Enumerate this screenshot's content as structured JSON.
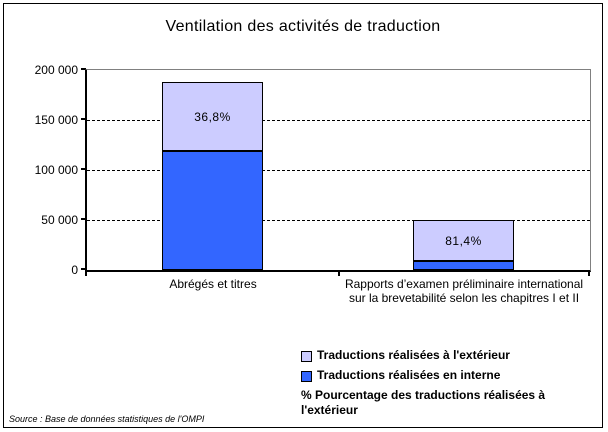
{
  "chart_data": {
    "type": "bar",
    "stacked": true,
    "title": "Ventilation des activités de traduction",
    "categories": [
      "Abrégés et titres",
      "Rapports d’examen préliminaire international sur la brevetabilité selon les chapitres I et II"
    ],
    "series": [
      {
        "name": "Traductions réalisées en interne",
        "color": "#3366FF",
        "values": [
          119000,
          9300
        ]
      },
      {
        "name": "Traductions réalisées à l'extérieur",
        "color": "#CCCCFF",
        "values": [
          69400,
          40700
        ]
      }
    ],
    "bar_labels": [
      "36,8%",
      "81,4%"
    ],
    "bar_labels_meaning": "% Pourcentage des traductions réalisées à l'extérieur",
    "ylim": [
      0,
      200000
    ],
    "ytick_step": 50000,
    "ytick_labels": [
      "200 000",
      "150 000",
      "100 000",
      "50 000",
      "0"
    ],
    "grid": "horizontal-dashed",
    "legend_position": "bottom-right",
    "legend": [
      {
        "label": "Traductions réalisées à l'extérieur",
        "color": "#CCCCFF"
      },
      {
        "label": "Traductions réalisées en interne",
        "color": "#3366FF"
      },
      {
        "label": "% Pourcentage des traductions réalisées à l'extérieur",
        "color": null
      }
    ],
    "source": "Source : Base de données statistiques de l'OMPI"
  }
}
